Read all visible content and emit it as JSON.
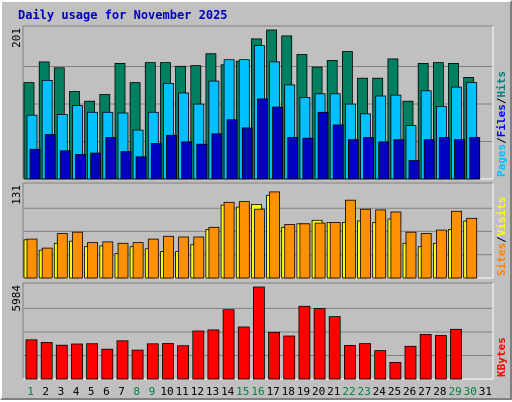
{
  "title": "Daily usage for November 2025",
  "chart_data": {
    "type": "bar",
    "title": "Daily usage for November 2025",
    "categories": [
      "1",
      "2",
      "3",
      "4",
      "5",
      "6",
      "7",
      "8",
      "9",
      "10",
      "11",
      "12",
      "13",
      "14",
      "15",
      "16",
      "17",
      "18",
      "19",
      "20",
      "21",
      "22",
      "23",
      "24",
      "25",
      "26",
      "27",
      "28",
      "29",
      "30",
      "31"
    ],
    "category_colors": [
      "#008040",
      "#000000",
      "#000000",
      "#000000",
      "#000000",
      "#000000",
      "#000000",
      "#008040",
      "#008040",
      "#000000",
      "#000000",
      "#000000",
      "#000000",
      "#000000",
      "#008040",
      "#008040",
      "#000000",
      "#000000",
      "#000000",
      "#000000",
      "#000000",
      "#008040",
      "#008040",
      "#000000",
      "#000000",
      "#000000",
      "#000000",
      "#000000",
      "#008040",
      "#008040",
      "#000000"
    ],
    "panels": [
      {
        "id": "hits",
        "ymax_label": "201",
        "ymax": 201,
        "right_labels": [
          {
            "text": "Hits",
            "color": "#008080"
          },
          {
            "text": "/",
            "color": "#000000"
          },
          {
            "text": "Files",
            "color": "#0000ff"
          },
          {
            "text": "/",
            "color": "#000000"
          },
          {
            "text": "Pages",
            "color": "#00c0ff"
          }
        ],
        "series": [
          {
            "name": "Hits",
            "color": "#008060",
            "values": [
              130,
              158,
              150,
              118,
              105,
              114,
              156,
              130,
              157,
              157,
              152,
              153,
              169,
              154,
              159,
              189,
              201,
              193,
              168,
              151,
              160,
              172,
              136,
              136,
              162,
              105,
              156,
              157,
              156,
              137,
              0
            ]
          },
          {
            "name": "Files",
            "color": "#00c0ff",
            "values": [
              86,
              133,
              87,
              99,
              90,
              90,
              89,
              66,
              90,
              129,
              116,
              101,
              132,
              161,
              161,
              180,
              158,
              127,
              110,
              115,
              115,
              101,
              88,
              112,
              113,
              72,
              119,
              98,
              124,
              130,
              0
            ]
          },
          {
            "name": "Pages",
            "color": "#0000c0",
            "values": [
              40,
              60,
              38,
              33,
              35,
              56,
              37,
              30,
              48,
              59,
              50,
              47,
              61,
              80,
              69,
              108,
              97,
              56,
              55,
              90,
              73,
              53,
              56,
              50,
              53,
              25,
              53,
              56,
              53,
              56,
              0
            ]
          }
        ]
      },
      {
        "id": "visits",
        "ymax_label": "131",
        "ymax": 131,
        "right_labels": [
          {
            "text": "Visits",
            "color": "#ffff00"
          },
          {
            "text": "/",
            "color": "#000000"
          },
          {
            "text": "Sites",
            "color": "#ff8000"
          }
        ],
        "series": [
          {
            "name": "Visits",
            "color": "#ffff00",
            "values": [
              55,
              40,
              50,
              53,
              45,
              46,
              35,
              45,
              42,
              38,
              38,
              48,
              70,
              105,
              102,
              106,
              119,
              73,
              78,
              83,
              80,
              80,
              82,
              80,
              85,
              50,
              45,
              50,
              70,
              82,
              0
            ]
          },
          {
            "name": "Sites",
            "color": "#ff9000",
            "values": [
              56,
              43,
              64,
              66,
              51,
              52,
              50,
              51,
              56,
              60,
              59,
              59,
              73,
              109,
              110,
              99,
              124,
              77,
              78,
              79,
              80,
              112,
              99,
              98,
              95,
              66,
              64,
              69,
              96,
              86,
              0
            ]
          }
        ]
      },
      {
        "id": "kbytes",
        "ymax_label": "5984",
        "ymax": 5984,
        "right_labels": [
          {
            "text": "KBytes",
            "color": "#ff0000"
          }
        ],
        "series": [
          {
            "name": "KBytes",
            "color": "#ff0000",
            "values": [
              2552,
              2381,
              2197,
              2277,
              2298,
              1936,
              2486,
              1879,
              2288,
              2307,
              2169,
              3123,
              3194,
              4505,
              3381,
              5984,
              3036,
              2796,
              4728,
              4579,
              4061,
              2185,
              2304,
              1848,
              1080,
              2127,
              2898,
              2832,
              3231,
              0,
              0
            ]
          }
        ]
      }
    ]
  }
}
